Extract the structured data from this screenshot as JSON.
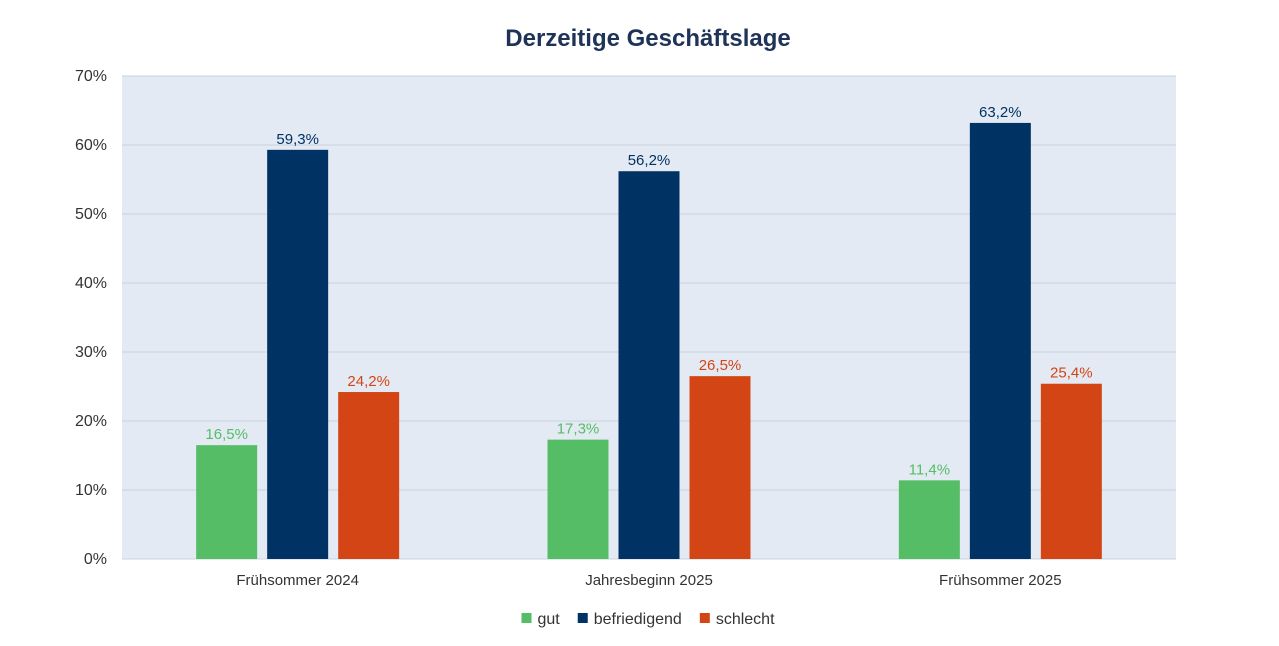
{
  "chart_data": {
    "type": "bar",
    "title": "Derzeitige Geschäftslage",
    "categories": [
      "Frühsommer 2024",
      "Jahresbeginn 2025",
      "Frühsommer 2025"
    ],
    "series": [
      {
        "name": "gut",
        "values": [
          16.5,
          17.3,
          11.4
        ],
        "labels": [
          "16,5%",
          "17,3%",
          "11,4%"
        ],
        "color": "#55bd65"
      },
      {
        "name": "befriedigend",
        "values": [
          59.3,
          56.2,
          63.2
        ],
        "labels": [
          "59,3%",
          "56,2%",
          "63,2%"
        ],
        "color": "#003364"
      },
      {
        "name": "schlecht",
        "values": [
          24.2,
          26.5,
          25.4
        ],
        "labels": [
          "24,2%",
          "26,5%",
          "25,4%"
        ],
        "color": "#d44515"
      }
    ],
    "ylim": [
      0,
      70
    ],
    "yticks": [
      0,
      10,
      20,
      30,
      40,
      50,
      60,
      70
    ],
    "ytick_labels": [
      "0%",
      "10%",
      "20%",
      "30%",
      "40%",
      "50%",
      "60%",
      "70%"
    ],
    "grid": true,
    "plot_background": "#e4eaf3",
    "legend_position": "bottom-center"
  }
}
